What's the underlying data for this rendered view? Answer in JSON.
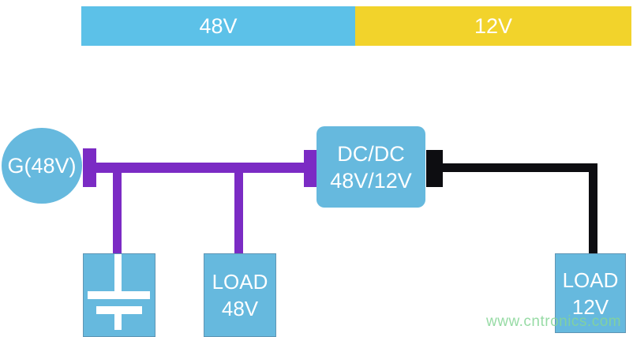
{
  "legend_bar": {
    "segments": [
      {
        "label": "48V",
        "color": "#5cc1e8"
      },
      {
        "label": "12V",
        "color": "#f2d32b"
      }
    ]
  },
  "components": {
    "generator": {
      "label": "G(48V)"
    },
    "dcdc": {
      "line1": "DC/DC",
      "line2": "48V/12V"
    },
    "load48": {
      "line1": "LOAD",
      "line2": "48V"
    },
    "load12": {
      "line1": "LOAD",
      "line2": "12V"
    },
    "capacitor": {
      "icon": "capacitor-symbol"
    }
  },
  "colors": {
    "component_blue": "#66b9de",
    "bar_blue": "#5cc1e8",
    "bar_yellow": "#f2d32b",
    "bus_48v_purple": "#7b2bc4",
    "wire_12v_black": "#0d0d11",
    "label_white": "#ffffff",
    "watermark_green": "#86d596"
  },
  "watermark": {
    "text": "www.cntronics.com"
  }
}
